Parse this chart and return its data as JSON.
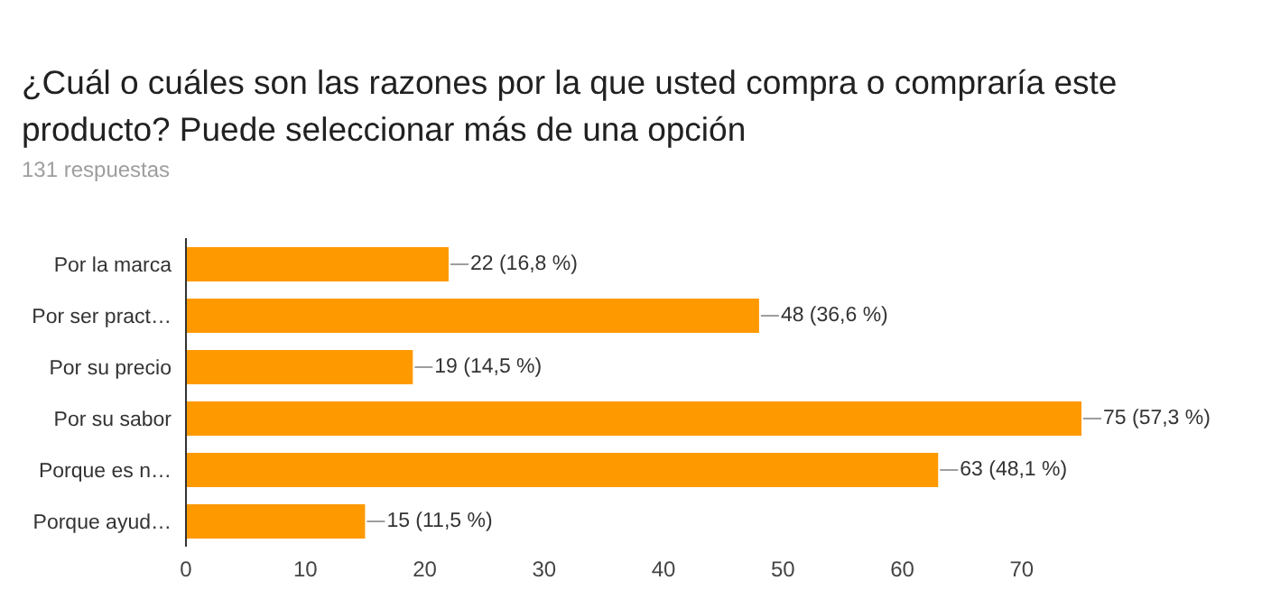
{
  "chart_data": {
    "type": "bar",
    "orientation": "horizontal",
    "title": "¿Cuál o cuáles son las razones por la que usted compra o compraría este producto? Puede seleccionar más de una opción",
    "subtitle": "131 respuestas",
    "categories": [
      "Por la marca",
      "Por ser pract…",
      "Por su precio",
      "Por su sabor",
      "Porque es n…",
      "Porque ayud…"
    ],
    "values": [
      22,
      48,
      19,
      75,
      63,
      15
    ],
    "value_labels": [
      "22 (16,8 %)",
      "48 (36,6 %)",
      "19 (14,5 %)",
      "75 (57,3 %)",
      "63 (48,1 %)",
      "15 (11,5 %)"
    ],
    "color": "#ff9900",
    "xlim": [
      0,
      75
    ],
    "xticks": [
      0,
      10,
      20,
      30,
      40,
      50,
      60,
      70
    ],
    "grid": false
  }
}
